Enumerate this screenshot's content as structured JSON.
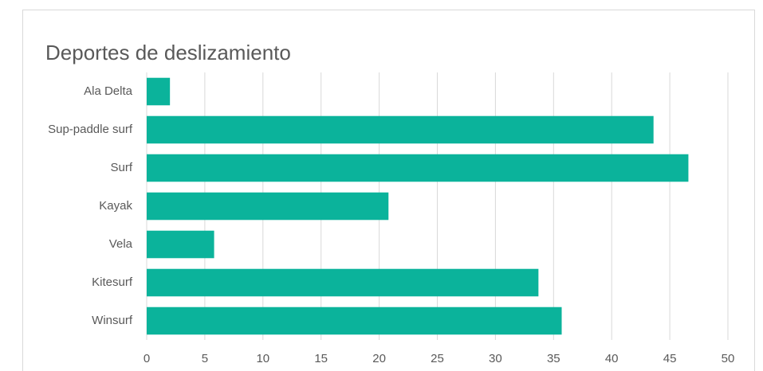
{
  "chart_data": {
    "type": "bar",
    "orientation": "horizontal",
    "title": "Deportes de deslizamiento",
    "categories": [
      "Ala Delta",
      "Sup-paddle surf",
      "Surf",
      "Kayak",
      "Vela",
      "Kitesurf",
      "Winsurf"
    ],
    "values": [
      2.0,
      43.6,
      46.6,
      20.8,
      5.8,
      33.7,
      35.7
    ],
    "color": "#0bb39b",
    "xlim": [
      0,
      50
    ],
    "xticks": [
      0,
      5,
      10,
      15,
      20,
      25,
      30,
      35,
      40,
      45,
      50
    ],
    "grid": true
  }
}
